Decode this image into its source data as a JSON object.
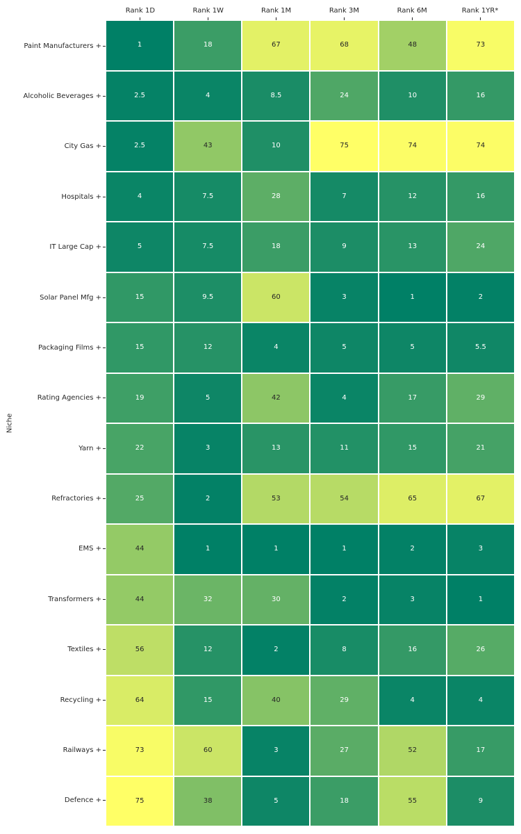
{
  "chart_data": {
    "type": "heatmap",
    "title": "",
    "xlabel": "",
    "ylabel": "Niche",
    "legend": "none",
    "grid": "white cell separators, 2px",
    "columns": [
      "Rank 1D",
      "Rank 1W",
      "Rank 1M",
      "Rank 3M",
      "Rank 6M",
      "Rank 1YR*"
    ],
    "categories": [
      "Paint Manufacturers",
      "Alcoholic Beverages",
      "City Gas",
      "Hospitals",
      "IT Large Cap",
      "Solar Panel Mfg",
      "Packaging Films",
      "Rating Agencies",
      "Yarn",
      "Refractories",
      "EMS",
      "Transformers",
      "Textiles",
      "Recycling",
      "Railways",
      "Defence"
    ],
    "row_label_suffix": " +",
    "values": [
      [
        1,
        18,
        67,
        68,
        48,
        73
      ],
      [
        2.5,
        4,
        8.5,
        24,
        10,
        16
      ],
      [
        2.5,
        43,
        10,
        75,
        74,
        74
      ],
      [
        4,
        7.5,
        28,
        7,
        12,
        16
      ],
      [
        5,
        7.5,
        18,
        9,
        13,
        24
      ],
      [
        15,
        9.5,
        60,
        3,
        1,
        2
      ],
      [
        15,
        12,
        4,
        5,
        5,
        5.5
      ],
      [
        19,
        5,
        42,
        4,
        17,
        29
      ],
      [
        22,
        3,
        13,
        11,
        15,
        21
      ],
      [
        25,
        2,
        53,
        54,
        65,
        67
      ],
      [
        44,
        1,
        1,
        1,
        2,
        3
      ],
      [
        44,
        32,
        30,
        2,
        3,
        1
      ],
      [
        56,
        12,
        2,
        8,
        16,
        26
      ],
      [
        64,
        15,
        40,
        29,
        4,
        4
      ],
      [
        73,
        60,
        3,
        27,
        52,
        17
      ],
      [
        75,
        38,
        5,
        18,
        55,
        9
      ]
    ],
    "vmin": 1,
    "vmax": 75,
    "colormap": "summer",
    "colors": {
      "cmap_low": "#008066",
      "cmap_high": "#ffff66",
      "annot_light": "#ffffff",
      "annot_dark": "#262626",
      "gridline": "#ffffff",
      "tick": "#262626",
      "background": "#ffffff"
    },
    "annot_luminance_threshold": 0.408
  }
}
